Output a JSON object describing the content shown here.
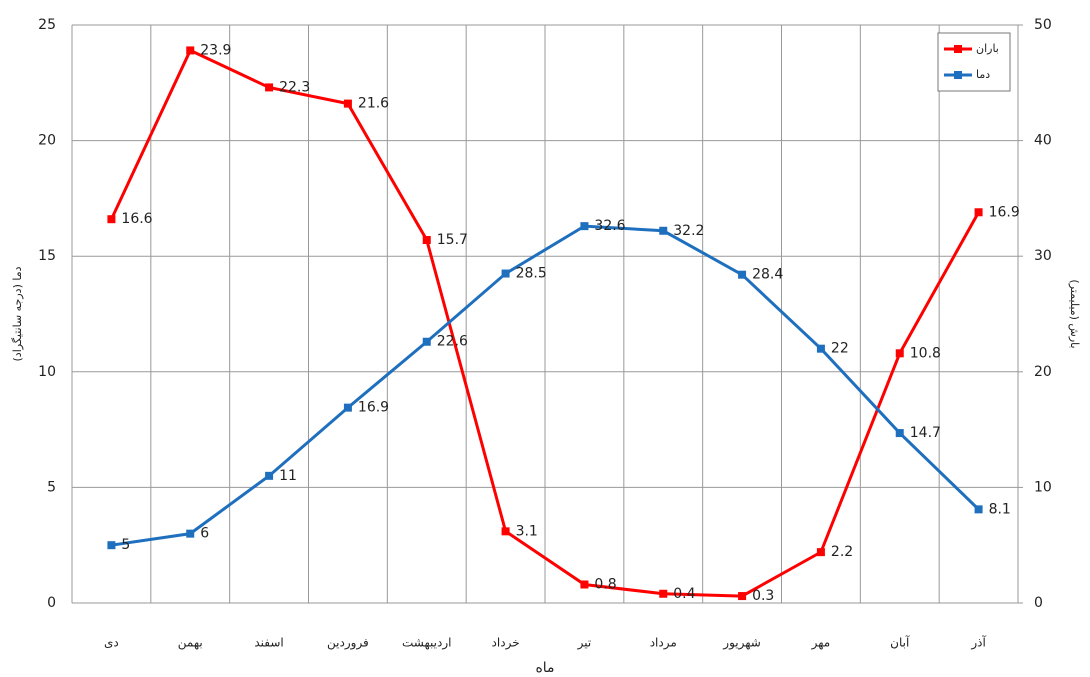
{
  "chart_data": {
    "type": "line",
    "x_label": "ماه",
    "y_label": "دما (درجه سانتیگراد)",
    "y2_label": "بارش (میلیمتر)",
    "categories": [
      "دی",
      "بهمن",
      "اسفند",
      "فروردین",
      "اردیبهشت",
      "خرداد",
      "تیر",
      "مرداد",
      "شهریور",
      "مهر",
      "آبان",
      "آذر"
    ],
    "series": [
      {
        "name": "باران",
        "color": "#ff0000",
        "values": [
          16.6,
          23.9,
          22.3,
          21.6,
          15.7,
          3.1,
          0.8,
          0.4,
          0.3,
          2.2,
          10.8,
          16.9
        ]
      },
      {
        "name": "دما",
        "color": "#1f6fbf",
        "axis": "y2",
        "values": [
          5,
          6,
          11,
          16.9,
          22.6,
          28.5,
          32.6,
          32.2,
          28.4,
          22,
          14.7,
          8.1
        ]
      }
    ],
    "ylim": [
      0,
      25
    ],
    "yticks": [
      0,
      5,
      10,
      15,
      20,
      25
    ],
    "y2lim": [
      0,
      50
    ],
    "y2ticks": [
      0,
      10,
      20,
      30,
      40,
      50
    ],
    "grid": true,
    "legend": "top-right"
  }
}
